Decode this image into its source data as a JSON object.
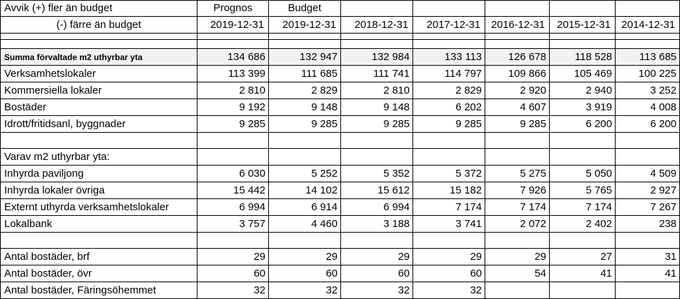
{
  "header": {
    "label_line1": "Avvik (+) fler än budget",
    "label_line2": "(-) färre än budget",
    "top": [
      "Prognos",
      "Budget",
      "",
      "",
      "",
      "",
      ""
    ],
    "dates": [
      "2019-12-31",
      "2019-12-31",
      "2018-12-31",
      "2017-12-31",
      "2016-12-31",
      "2015-12-31",
      "2014-12-31"
    ]
  },
  "total": {
    "label": "Summa förvaltade m2 uthyrbar yta",
    "values": [
      "134 686",
      "132 947",
      "132 984",
      "133 113",
      "126 678",
      "118 528",
      "113 685"
    ]
  },
  "section1": [
    {
      "label": "Verksamhetslokaler",
      "values": [
        "113 399",
        "111 685",
        "111 741",
        "114 797",
        "109 866",
        "105 469",
        "100 225"
      ]
    },
    {
      "label": "Kommersiella lokaler",
      "values": [
        "2 810",
        "2 829",
        "2 810",
        "2 829",
        "2 920",
        "2 940",
        "3 252"
      ]
    },
    {
      "label": "Bostäder",
      "values": [
        "9 192",
        "9 148",
        "9 148",
        "6 202",
        "4 607",
        "3 919",
        "4 008"
      ]
    },
    {
      "label": "Idrott/fritidsanl, byggnader",
      "values": [
        "9 285",
        "9 285",
        "9 285",
        "9 285",
        "9 285",
        "6 200",
        "6 200"
      ]
    }
  ],
  "section2_title": "Varav m2 uthyrbar yta:",
  "section2": [
    {
      "label": "Inhyrda paviljong",
      "values": [
        "6 030",
        "5 252",
        "5 352",
        "5 372",
        "5 275",
        "5 050",
        "4 509"
      ]
    },
    {
      "label": "Inhyrda lokaler övriga",
      "values": [
        "15 442",
        "14 102",
        "15 612",
        "15 182",
        "7 926",
        "5 765",
        "2 927"
      ]
    },
    {
      "label": "Externt uthyrda verksamhetslokaler",
      "values": [
        "6 994",
        "6 914",
        "6 994",
        "7 174",
        "7 174",
        "7 174",
        "7 267"
      ]
    },
    {
      "label": "Lokalbank",
      "values": [
        "3 757",
        "4 460",
        "3 188",
        "3 741",
        "2 072",
        "2 402",
        "238"
      ]
    }
  ],
  "section3": [
    {
      "label": "Antal bostäder, brf",
      "values": [
        "29",
        "29",
        "29",
        "29",
        "29",
        "27",
        "31"
      ]
    },
    {
      "label": "Antal bostäder, övr",
      "values": [
        "60",
        "60",
        "60",
        "60",
        "54",
        "41",
        "41"
      ]
    },
    {
      "label": "Antal bostäder, Färingsöhemmet",
      "values": [
        "32",
        "32",
        "32",
        "32",
        "",
        "",
        ""
      ]
    }
  ]
}
